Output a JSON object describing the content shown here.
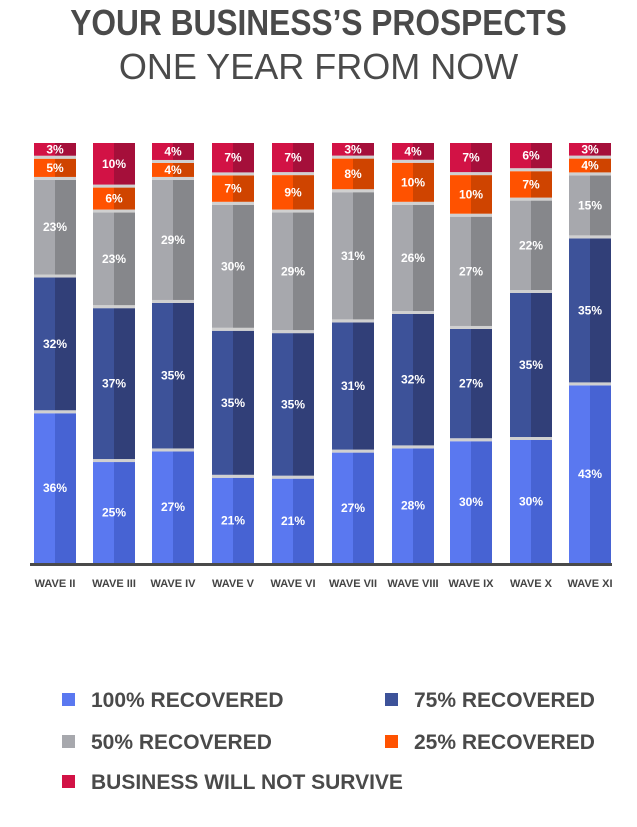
{
  "chart_data": {
    "type": "bar",
    "stacked": true,
    "title": "YOUR BUSINESS’S PROSPECTS",
    "subtitle": "ONE YEAR FROM NOW",
    "categories": [
      "WAVE II",
      "WAVE III",
      "WAVE IV",
      "WAVE V",
      "WAVE VI",
      "WAVE VII",
      "WAVE VIII",
      "WAVE IX",
      "WAVE X",
      "WAVE XI"
    ],
    "value_suffix": "%",
    "series": [
      {
        "name": "100% RECOVERED",
        "color": "#5a78f0",
        "color_dark": "#4763d3",
        "values": [
          36,
          25,
          27,
          21,
          21,
          27,
          28,
          30,
          30,
          43
        ]
      },
      {
        "name": "75% RECOVERED",
        "color": "#3d5299",
        "color_dark": "#313f78",
        "values": [
          32,
          37,
          35,
          35,
          35,
          31,
          32,
          27,
          35,
          35
        ]
      },
      {
        "name": "50% RECOVERED",
        "color": "#a7a8ad",
        "color_dark": "#86878b",
        "values": [
          23,
          23,
          29,
          30,
          29,
          31,
          26,
          27,
          22,
          15
        ]
      },
      {
        "name": "25% RECOVERED",
        "color": "#ff5200",
        "color_dark": "#cf4400",
        "values": [
          5,
          6,
          4,
          7,
          9,
          8,
          10,
          10,
          7,
          4
        ]
      },
      {
        "name": "BUSINESS WILL NOT SURVIVE",
        "color": "#d21245",
        "color_dark": "#a50f3a",
        "values": [
          3,
          10,
          4,
          7,
          7,
          3,
          4,
          7,
          6,
          3
        ]
      }
    ],
    "legend_placement": "bottom",
    "grid": false
  }
}
